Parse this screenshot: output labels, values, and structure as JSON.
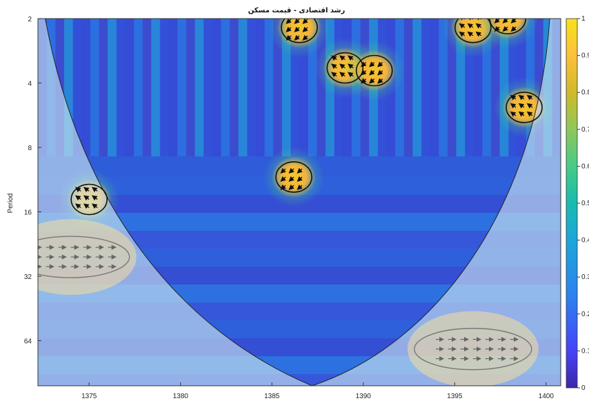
{
  "chart_data": {
    "type": "heatmap",
    "title": "رشد اقتصادی - قیمت مسکن",
    "xlabel": "",
    "ylabel": "Period",
    "xlim": [
      1372.2,
      1400.8
    ],
    "ylim_log2": [
      1.0,
      6.7
    ],
    "x_ticks": [
      {
        "value": 1375,
        "label": "1375"
      },
      {
        "value": 1380,
        "label": "1380"
      },
      {
        "value": 1385,
        "label": "1385"
      },
      {
        "value": 1390,
        "label": "1390"
      },
      {
        "value": 1395,
        "label": "1395"
      },
      {
        "value": 1400,
        "label": "1400"
      }
    ],
    "y_ticks": [
      {
        "value": 2,
        "label": "2"
      },
      {
        "value": 4,
        "label": "4"
      },
      {
        "value": 8,
        "label": "8"
      },
      {
        "value": 16,
        "label": "16"
      },
      {
        "value": 32,
        "label": "32"
      },
      {
        "value": 64,
        "label": "64"
      }
    ],
    "colorbar": {
      "min": 0,
      "max": 1,
      "ticks": [
        "0",
        "0.1",
        "0.2",
        "0.3",
        "0.4",
        "0.5",
        "0.6",
        "0.7",
        "0.8",
        "0.9",
        "1"
      ],
      "colors": [
        "#3e26a8",
        "#4743f8",
        "#2c82f0",
        "#1ca6d9",
        "#17bcb0",
        "#48cb86",
        "#8ec85a",
        "#d0b92b",
        "#fdc03a",
        "#f5e21b"
      ]
    },
    "significant_regions": [
      {
        "x": 1375.0,
        "period": 14.0,
        "power": 0.95
      },
      {
        "x": 1386.2,
        "period": 11.0,
        "power": 0.9
      },
      {
        "x": 1398.8,
        "period": 5.2,
        "power": 0.9
      },
      {
        "x": 1386.5,
        "period": 2.2,
        "power": 0.9
      },
      {
        "x": 1389.0,
        "period": 3.4,
        "power": 0.9
      },
      {
        "x": 1390.6,
        "period": 3.5,
        "power": 0.9
      },
      {
        "x": 1396.0,
        "period": 2.2,
        "power": 0.9
      },
      {
        "x": 1397.9,
        "period": 2.0,
        "power": 0.95
      }
    ],
    "low_confidence_regions": [
      {
        "x": 1374.0,
        "period": 26.0
      },
      {
        "x": 1396.0,
        "period": 70.0
      }
    ]
  }
}
